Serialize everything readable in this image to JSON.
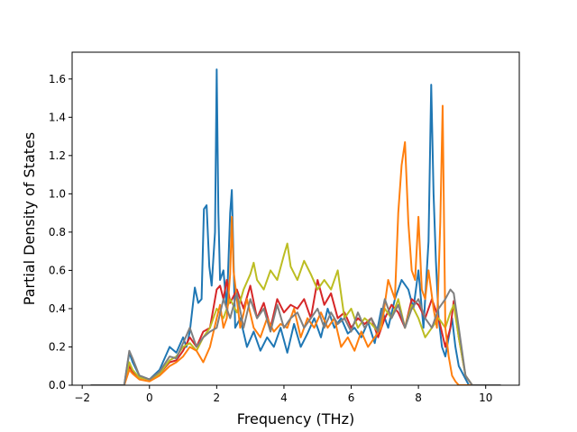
{
  "chart_data": {
    "type": "line",
    "xlabel": "Frequency (THz)",
    "ylabel": "Partial Density of States",
    "xlim": [
      -2.3,
      11.0
    ],
    "ylim": [
      0.0,
      1.74
    ],
    "xticks": [
      -2,
      0,
      2,
      4,
      6,
      8,
      10
    ],
    "xtick_labels": [
      "−2",
      "0",
      "2",
      "4",
      "6",
      "8",
      "10"
    ],
    "yticks": [
      0.0,
      0.2,
      0.4,
      0.6,
      0.8,
      1.0,
      1.2,
      1.4,
      1.6
    ],
    "ytick_labels": [
      "0.0",
      "0.2",
      "0.4",
      "0.6",
      "0.8",
      "1.0",
      "1.2",
      "1.4",
      "1.6"
    ],
    "grid": false,
    "legend": "none",
    "series": [
      {
        "color": "#1f77b4",
        "x": [
          -1.75,
          -0.75,
          -0.6,
          -0.5,
          -0.3,
          0,
          0.3,
          0.6,
          0.8,
          1.0,
          1.1,
          1.2,
          1.35,
          1.45,
          1.55,
          1.62,
          1.7,
          1.78,
          1.85,
          1.95,
          2.0,
          2.05,
          2.1,
          2.2,
          2.3,
          2.4,
          2.45,
          2.55,
          2.7,
          2.9,
          3.1,
          3.3,
          3.5,
          3.7,
          3.9,
          4.1,
          4.3,
          4.5,
          4.7,
          4.9,
          5.1,
          5.3,
          5.5,
          5.7,
          5.9,
          6.1,
          6.3,
          6.5,
          6.7,
          6.9,
          7.1,
          7.3,
          7.5,
          7.7,
          7.85,
          8.0,
          8.15,
          8.3,
          8.38,
          8.45,
          8.52,
          8.6,
          8.7,
          8.8,
          8.9,
          9.0,
          9.1,
          9.2,
          9.35,
          9.5,
          9.7,
          10.45
        ],
        "y": [
          0.0,
          0.0,
          0.17,
          0.12,
          0.05,
          0.03,
          0.08,
          0.2,
          0.17,
          0.25,
          0.2,
          0.28,
          0.51,
          0.43,
          0.45,
          0.92,
          0.94,
          0.62,
          0.52,
          0.8,
          1.65,
          0.9,
          0.55,
          0.6,
          0.4,
          0.9,
          1.02,
          0.3,
          0.35,
          0.2,
          0.28,
          0.18,
          0.25,
          0.2,
          0.3,
          0.17,
          0.32,
          0.2,
          0.27,
          0.35,
          0.25,
          0.4,
          0.3,
          0.35,
          0.27,
          0.3,
          0.25,
          0.33,
          0.22,
          0.4,
          0.3,
          0.45,
          0.55,
          0.5,
          0.4,
          0.6,
          0.3,
          0.75,
          1.57,
          1.0,
          0.65,
          0.35,
          0.2,
          0.15,
          0.25,
          0.35,
          0.2,
          0.1,
          0.05,
          0.0,
          0.0,
          0.0
        ]
      },
      {
        "color": "#d62728",
        "x": [
          -1.75,
          -0.75,
          -0.6,
          -0.5,
          -0.3,
          0,
          0.3,
          0.6,
          0.8,
          1.0,
          1.2,
          1.4,
          1.6,
          1.8,
          2.0,
          2.1,
          2.2,
          2.3,
          2.4,
          2.6,
          2.8,
          3.0,
          3.2,
          3.4,
          3.6,
          3.8,
          4.0,
          4.2,
          4.4,
          4.6,
          4.8,
          5.0,
          5.2,
          5.4,
          5.6,
          5.8,
          6.0,
          6.2,
          6.4,
          6.6,
          6.8,
          7.0,
          7.2,
          7.4,
          7.6,
          7.8,
          8.0,
          8.2,
          8.4,
          8.6,
          8.8,
          8.95,
          9.05,
          9.2,
          9.4,
          9.6,
          10.45
        ],
        "y": [
          0.0,
          0.0,
          0.1,
          0.07,
          0.04,
          0.03,
          0.06,
          0.12,
          0.13,
          0.18,
          0.25,
          0.2,
          0.28,
          0.3,
          0.5,
          0.52,
          0.45,
          0.55,
          0.43,
          0.5,
          0.4,
          0.52,
          0.35,
          0.43,
          0.3,
          0.45,
          0.38,
          0.42,
          0.4,
          0.45,
          0.35,
          0.55,
          0.42,
          0.48,
          0.35,
          0.38,
          0.3,
          0.35,
          0.32,
          0.35,
          0.25,
          0.35,
          0.42,
          0.38,
          0.3,
          0.45,
          0.42,
          0.35,
          0.45,
          0.35,
          0.2,
          0.3,
          0.44,
          0.25,
          0.05,
          0.0,
          0.0
        ]
      },
      {
        "color": "#bcbd22",
        "x": [
          -1.75,
          -0.75,
          -0.6,
          -0.5,
          -0.3,
          0,
          0.3,
          0.6,
          0.8,
          1.0,
          1.2,
          1.4,
          1.6,
          1.8,
          2.0,
          2.2,
          2.4,
          2.6,
          2.8,
          3.0,
          3.1,
          3.2,
          3.4,
          3.6,
          3.8,
          4.0,
          4.1,
          4.2,
          4.4,
          4.6,
          4.8,
          5.0,
          5.2,
          5.4,
          5.6,
          5.8,
          6.0,
          6.2,
          6.4,
          6.6,
          6.8,
          7.0,
          7.2,
          7.4,
          7.6,
          7.8,
          8.0,
          8.2,
          8.4,
          8.6,
          8.8,
          8.95,
          9.05,
          9.2,
          9.4,
          9.6,
          10.45
        ],
        "y": [
          0.0,
          0.0,
          0.12,
          0.08,
          0.04,
          0.03,
          0.06,
          0.13,
          0.15,
          0.2,
          0.22,
          0.18,
          0.25,
          0.3,
          0.4,
          0.35,
          0.45,
          0.38,
          0.5,
          0.58,
          0.64,
          0.55,
          0.5,
          0.6,
          0.55,
          0.68,
          0.74,
          0.62,
          0.55,
          0.65,
          0.58,
          0.5,
          0.55,
          0.5,
          0.6,
          0.35,
          0.4,
          0.3,
          0.35,
          0.32,
          0.28,
          0.4,
          0.35,
          0.45,
          0.3,
          0.42,
          0.35,
          0.25,
          0.3,
          0.35,
          0.3,
          0.38,
          0.42,
          0.25,
          0.05,
          0.0,
          0.0
        ]
      },
      {
        "color": "#ff7f0e",
        "x": [
          -1.75,
          -0.75,
          -0.6,
          -0.5,
          -0.3,
          0,
          0.3,
          0.6,
          0.8,
          1.0,
          1.2,
          1.4,
          1.6,
          1.8,
          2.0,
          2.1,
          2.2,
          2.3,
          2.4,
          2.45,
          2.5,
          2.7,
          2.9,
          3.1,
          3.3,
          3.5,
          3.7,
          3.9,
          4.1,
          4.3,
          4.5,
          4.7,
          4.9,
          5.1,
          5.3,
          5.5,
          5.7,
          5.9,
          6.1,
          6.3,
          6.5,
          6.7,
          6.9,
          7.1,
          7.3,
          7.4,
          7.5,
          7.6,
          7.7,
          7.8,
          7.9,
          8.0,
          8.1,
          8.2,
          8.3,
          8.45,
          8.55,
          8.65,
          8.72,
          8.8,
          8.9,
          9.0,
          9.1,
          9.2,
          9.4,
          9.6,
          10.45
        ],
        "y": [
          0.0,
          0.0,
          0.08,
          0.06,
          0.03,
          0.02,
          0.05,
          0.1,
          0.12,
          0.15,
          0.2,
          0.18,
          0.12,
          0.2,
          0.35,
          0.42,
          0.3,
          0.35,
          0.58,
          0.88,
          0.6,
          0.3,
          0.45,
          0.3,
          0.25,
          0.35,
          0.28,
          0.32,
          0.3,
          0.4,
          0.25,
          0.35,
          0.3,
          0.38,
          0.3,
          0.35,
          0.2,
          0.25,
          0.18,
          0.28,
          0.2,
          0.25,
          0.3,
          0.55,
          0.45,
          0.9,
          1.15,
          1.27,
          0.85,
          0.6,
          0.55,
          0.88,
          0.5,
          0.45,
          0.6,
          0.4,
          0.3,
          0.85,
          1.46,
          0.3,
          0.15,
          0.05,
          0.02,
          0.0,
          0.0,
          0.0,
          0.0
        ]
      },
      {
        "color": "#7f7f7f",
        "x": [
          -1.75,
          -0.75,
          -0.6,
          -0.5,
          -0.3,
          0,
          0.3,
          0.6,
          0.8,
          1.0,
          1.2,
          1.4,
          1.6,
          1.8,
          2.0,
          2.2,
          2.4,
          2.6,
          2.8,
          3.0,
          3.2,
          3.4,
          3.6,
          3.8,
          4.0,
          4.2,
          4.4,
          4.6,
          4.8,
          5.0,
          5.2,
          5.4,
          5.6,
          5.8,
          6.0,
          6.2,
          6.4,
          6.6,
          6.8,
          7.0,
          7.2,
          7.4,
          7.6,
          7.8,
          8.0,
          8.2,
          8.4,
          8.6,
          8.8,
          8.95,
          9.05,
          9.2,
          9.4,
          9.6,
          10.45
        ],
        "y": [
          0.0,
          0.0,
          0.18,
          0.14,
          0.05,
          0.03,
          0.07,
          0.15,
          0.14,
          0.22,
          0.3,
          0.2,
          0.25,
          0.28,
          0.3,
          0.45,
          0.35,
          0.48,
          0.3,
          0.45,
          0.35,
          0.4,
          0.28,
          0.42,
          0.3,
          0.35,
          0.38,
          0.3,
          0.35,
          0.4,
          0.3,
          0.38,
          0.32,
          0.35,
          0.28,
          0.38,
          0.3,
          0.35,
          0.28,
          0.45,
          0.35,
          0.42,
          0.3,
          0.4,
          0.45,
          0.35,
          0.3,
          0.4,
          0.45,
          0.5,
          0.48,
          0.3,
          0.05,
          0.0,
          0.0
        ]
      }
    ]
  }
}
